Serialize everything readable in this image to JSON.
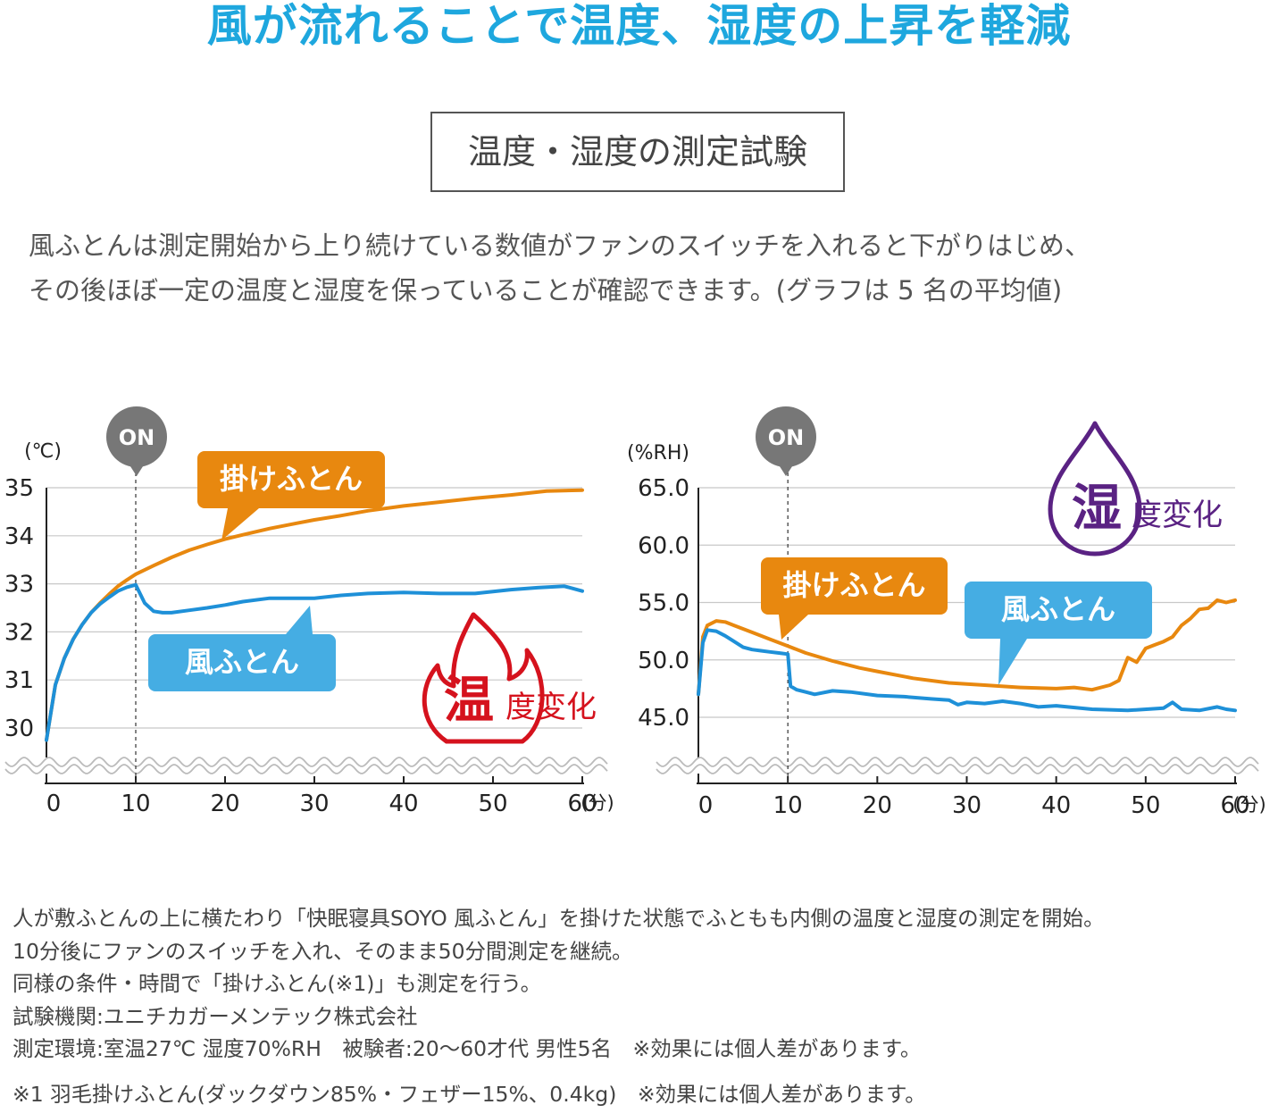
{
  "title": "風が流れることで温度、湿度の上昇を軽減",
  "section_label": "温度・湿度の測定試験",
  "description": [
    "風ふとんは測定開始から上り続けている数値がファンのスイッチを入れると下がりはじめ、",
    "その後ほぼ一定の温度と湿度を保っていることが確認できます。(グラフは 5 名の平均値)"
  ],
  "colors": {
    "title": "#1ea7de",
    "orange": "#e8880f",
    "blue": "#1e90d8",
    "callout_blue": "#45ade3",
    "temp_accent": "#d5121d",
    "humid_accent": "#5a2283",
    "on_badge": "#777777",
    "grid": "#c8c8c8"
  },
  "chart_data": [
    {
      "type": "line",
      "x_unit": "(分)",
      "y_unit": "(℃)",
      "x_ticks": [
        "0",
        "10",
        "20",
        "30",
        "40",
        "50",
        "60"
      ],
      "y_ticks": [
        "30",
        "31",
        "32",
        "33",
        "34",
        "35"
      ],
      "xlim": [
        0,
        60
      ],
      "ylim": [
        30,
        35
      ],
      "grid": true,
      "on_marker": {
        "label": "ON",
        "x": 10
      },
      "badge": {
        "big": "温",
        "rest": "度変化",
        "icon": "flame-icon"
      },
      "series": [
        {
          "name": "掛けふとん",
          "color": "orange",
          "x": [
            0,
            1,
            2,
            3,
            4,
            5,
            6,
            7,
            8,
            9,
            10,
            12,
            14,
            16,
            18,
            20,
            22,
            25,
            28,
            30,
            33,
            36,
            40,
            44,
            48,
            52,
            56,
            60
          ],
          "y": [
            29.75,
            30.9,
            31.45,
            31.85,
            32.15,
            32.4,
            32.6,
            32.78,
            32.95,
            33.08,
            33.2,
            33.38,
            33.55,
            33.7,
            33.82,
            33.93,
            34.02,
            34.15,
            34.26,
            34.33,
            34.42,
            34.52,
            34.62,
            34.7,
            34.78,
            34.85,
            34.93,
            34.95
          ]
        },
        {
          "name": "風ふとん",
          "color": "blue",
          "x": [
            0,
            1,
            2,
            3,
            4,
            5,
            6,
            7,
            8,
            9,
            10,
            11,
            12,
            13,
            14,
            16,
            18,
            20,
            22,
            25,
            28,
            30,
            33,
            36,
            40,
            44,
            48,
            52,
            55,
            58,
            60
          ],
          "y": [
            29.75,
            30.9,
            31.45,
            31.85,
            32.15,
            32.4,
            32.58,
            32.72,
            32.85,
            32.93,
            32.98,
            32.6,
            32.43,
            32.4,
            32.4,
            32.45,
            32.5,
            32.56,
            32.63,
            32.7,
            32.7,
            32.7,
            32.76,
            32.8,
            32.82,
            32.8,
            32.8,
            32.88,
            32.92,
            32.95,
            32.85
          ]
        }
      ]
    },
    {
      "type": "line",
      "x_unit": "(分)",
      "y_unit": "(%RH)",
      "x_ticks": [
        "0",
        "10",
        "20",
        "30",
        "40",
        "50",
        "60"
      ],
      "y_ticks": [
        "45.0",
        "50.0",
        "55.0",
        "60.0",
        "65.0"
      ],
      "xlim": [
        0,
        60
      ],
      "ylim": [
        45,
        65
      ],
      "grid": true,
      "on_marker": {
        "label": "ON",
        "x": 10
      },
      "badge": {
        "big": "湿",
        "rest": "度変化",
        "icon": "water-drop-icon"
      },
      "series": [
        {
          "name": "掛けふとん",
          "color": "orange",
          "x": [
            0,
            0.5,
            1,
            2,
            3,
            4,
            6,
            8,
            10,
            12,
            15,
            18,
            20,
            24,
            28,
            32,
            36,
            40,
            42,
            44,
            46,
            47,
            48,
            49,
            50,
            51,
            52,
            53,
            54,
            55,
            56,
            57,
            58,
            59,
            60
          ],
          "y": [
            47,
            52.0,
            53.0,
            53.4,
            53.3,
            53.0,
            52.4,
            51.8,
            51.2,
            50.6,
            49.9,
            49.3,
            49.0,
            48.4,
            48.0,
            47.8,
            47.6,
            47.5,
            47.6,
            47.4,
            47.8,
            48.2,
            50.2,
            49.8,
            51.0,
            51.3,
            51.6,
            52.0,
            53.0,
            53.6,
            54.4,
            54.5,
            55.2,
            55.0,
            55.2
          ]
        },
        {
          "name": "風ふとん",
          "color": "blue",
          "x": [
            0,
            0.5,
            1,
            2,
            3,
            4,
            5,
            6,
            7,
            8,
            9,
            10,
            10.3,
            11,
            12,
            13,
            15,
            17,
            20,
            23,
            26,
            28,
            29,
            30,
            32,
            34,
            36,
            38,
            40,
            44,
            48,
            52,
            53,
            54,
            56,
            58,
            59,
            60
          ],
          "y": [
            47,
            51.5,
            52.6,
            52.5,
            52.1,
            51.6,
            51.1,
            50.9,
            50.8,
            50.7,
            50.6,
            50.5,
            47.7,
            47.4,
            47.2,
            47.0,
            47.3,
            47.2,
            46.9,
            46.8,
            46.6,
            46.5,
            46.1,
            46.3,
            46.2,
            46.4,
            46.2,
            45.9,
            46.0,
            45.7,
            45.6,
            45.8,
            46.3,
            45.7,
            45.6,
            45.9,
            45.7,
            45.6
          ]
        }
      ]
    }
  ],
  "notes": [
    "人が敷ふとんの上に横たわり「快眠寝具SOYO 風ふとん」を掛けた状態でふともも内側の温度と湿度の測定を開始。",
    "10分後にファンのスイッチを入れ、そのまま50分間測定を継続。",
    "同様の条件・時間で「掛けふとん(※1)」も測定を行う。",
    "試験機関:ユニチカガーメンテック株式会社",
    "測定環境:室温27℃ 湿度70%RH　被験者:20〜60才代 男性5名　※効果には個人差があります。"
  ],
  "footnote": "※1 羽毛掛けふとん(ダックダウン85%・フェザー15%、0.4kg)　※効果には個人差があります。"
}
